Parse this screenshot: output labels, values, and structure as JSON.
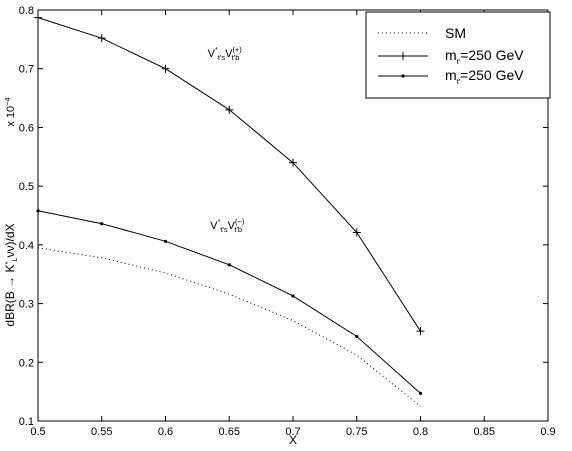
{
  "chart_data": {
    "type": "line",
    "xlabel": "X",
    "ylabel": "dBR(B → K*_L νν)/dX",
    "y_multiplier": "x 10^-4",
    "xlim": [
      0.5,
      0.9
    ],
    "ylim": [
      0.1,
      0.8
    ],
    "xticks": [
      "0.5",
      "0.55",
      "0.6",
      "0.65",
      "0.7",
      "0.75",
      "0.8",
      "0.85",
      "0.9"
    ],
    "yticks": [
      "0.1",
      "0.2",
      "0.3",
      "0.4",
      "0.5",
      "0.6",
      "0.7",
      "0.8"
    ],
    "grid": false,
    "legend_position": "top-right",
    "series": [
      {
        "name": "SM",
        "style": "dotted",
        "marker": "none",
        "x": [
          0.5,
          0.55,
          0.6,
          0.65,
          0.7,
          0.75,
          0.8
        ],
        "y": [
          0.395,
          0.378,
          0.352,
          0.316,
          0.271,
          0.212,
          0.125
        ]
      },
      {
        "name": "m_t' = 250 GeV",
        "style": "solid",
        "marker": "plus",
        "x": [
          0.5,
          0.55,
          0.6,
          0.65,
          0.7,
          0.75,
          0.8
        ],
        "y": [
          0.787,
          0.752,
          0.7,
          0.63,
          0.54,
          0.421,
          0.253
        ]
      },
      {
        "name": "m_t' = 250 GeV",
        "style": "solid",
        "marker": "dot",
        "x": [
          0.5,
          0.55,
          0.6,
          0.65,
          0.7,
          0.75,
          0.8
        ],
        "y": [
          0.458,
          0.436,
          0.406,
          0.366,
          0.313,
          0.244,
          0.147
        ]
      }
    ],
    "annotations": [
      {
        "text": "V*_t's V_t'b^(+)",
        "x": 0.66,
        "y": 0.68,
        "series": "plus"
      },
      {
        "text": "V*_t's V_t'b^(−)",
        "x": 0.66,
        "y": 0.42,
        "series": "dot"
      }
    ]
  }
}
